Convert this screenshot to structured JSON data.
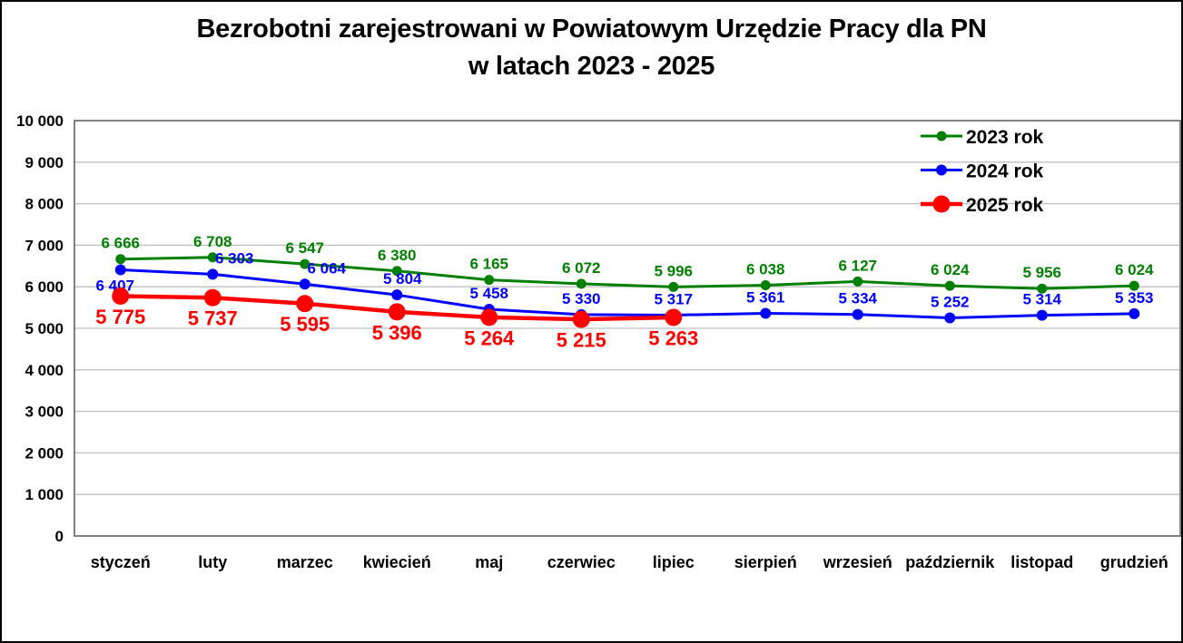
{
  "chart_data": {
    "type": "line",
    "title": "Bezrobotni zarejestrowani w Powiatowym Urzędzie Pracy dla PN",
    "subtitle": "w latach 2023 - 2025",
    "categories": [
      "styczeń",
      "luty",
      "marzec",
      "kwiecień",
      "maj",
      "czerwiec",
      "lipiec",
      "sierpień",
      "wrzesień",
      "październik",
      "listopad",
      "grudzień"
    ],
    "series": [
      {
        "name": "2023 rok",
        "color": "#008000",
        "values": [
          6666,
          6708,
          6547,
          6380,
          6165,
          6072,
          5996,
          6038,
          6127,
          6024,
          5956,
          6024
        ],
        "label_position": "above",
        "label_font_size": 17,
        "marker_radius": 5.5,
        "line_width": 3
      },
      {
        "name": "2024 rok",
        "color": "#0000FF",
        "values": [
          6407,
          6303,
          6064,
          5804,
          5458,
          5330,
          5317,
          5361,
          5334,
          5252,
          5314,
          5353
        ],
        "label_position": "above",
        "label_font_size": 17,
        "marker_radius": 6,
        "line_width": 3,
        "label_overrides": {
          "0": {
            "dx": -6,
            "dy": 23
          },
          "1": {
            "dx": 24
          },
          "2": {
            "dx": 24
          },
          "3": {
            "dx": 6
          }
        }
      },
      {
        "name": "2025 rok",
        "color": "#FF0000",
        "values": [
          5775,
          5737,
          5595,
          5396,
          5264,
          5215,
          5263
        ],
        "label_position": "below",
        "label_font_size": 22,
        "marker_radius": 9.5,
        "line_width": 4.5
      }
    ],
    "ylim": [
      0,
      10000
    ],
    "ytick_step": 1000,
    "grid": true,
    "legend_position": "top-right",
    "legend_labels": [
      "2023 rok",
      "2024 rok",
      "2025 rok"
    ],
    "number_format": "space-thousands",
    "colors": {
      "plot_border": "#808080",
      "gridline": "#BFBFBF",
      "tick_label": "#000000",
      "background": "#FFFFFF",
      "frame_border": "#000000"
    }
  }
}
